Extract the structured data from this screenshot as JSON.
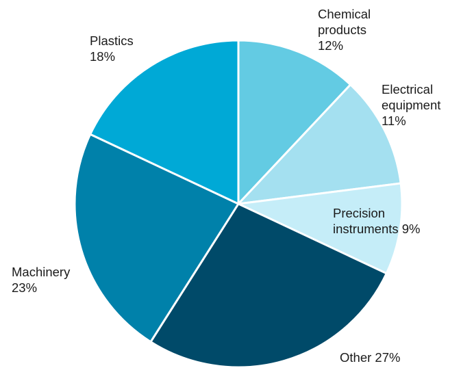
{
  "chart_data": {
    "type": "pie",
    "title": "",
    "slices": [
      {
        "category": "Chemical products",
        "value": 12,
        "value_label": "12%",
        "label_lines": [
          "Chemical",
          "products",
          "12%"
        ],
        "color": "#63CBE3"
      },
      {
        "category": "Electrical equipment",
        "value": 11,
        "value_label": "11%",
        "label_lines": [
          "Electrical",
          "equipment",
          "11%"
        ],
        "color": "#A4E0F0"
      },
      {
        "category": "Precision instruments",
        "value": 9,
        "value_label": "9%",
        "label_lines": [
          "Precision",
          "instruments 9%"
        ],
        "color": "#C5EDF8"
      },
      {
        "category": "Other",
        "value": 27,
        "value_label": "27%",
        "label_lines": [
          "Other 27%"
        ],
        "color": "#004A69"
      },
      {
        "category": "Machinery",
        "value": 23,
        "value_label": "23%",
        "label_lines": [
          "Machinery",
          "23%"
        ],
        "color": "#0081AA"
      },
      {
        "category": "Plastics",
        "value": 18,
        "value_label": "18%",
        "label_lines": [
          "Plastics",
          "18%"
        ],
        "color": "#00A9D6"
      }
    ],
    "start_angle": "12 o'clock",
    "direction": "clockwise",
    "legend": "none",
    "data_labels": "outside"
  }
}
